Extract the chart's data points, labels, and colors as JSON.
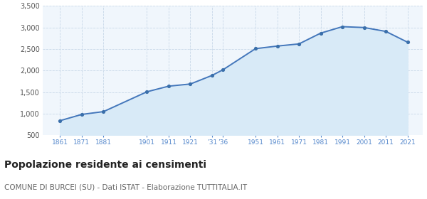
{
  "years": [
    1861,
    1871,
    1881,
    1901,
    1911,
    1921,
    1931,
    1936,
    1951,
    1961,
    1971,
    1981,
    1991,
    2001,
    2011,
    2021
  ],
  "population": [
    840,
    985,
    1050,
    1510,
    1640,
    1690,
    1890,
    2020,
    2510,
    2570,
    2620,
    2870,
    3020,
    3000,
    2910,
    2660
  ],
  "xtick_positions": [
    1861,
    1871,
    1881,
    1901,
    1911,
    1921,
    1931,
    1936,
    1951,
    1961,
    1971,
    1981,
    1991,
    2001,
    2011,
    2021
  ],
  "xtick_labels": [
    "1861",
    "1871",
    "1881",
    "1901",
    "1911",
    "1921",
    "’31",
    "’36",
    "1951",
    "1961",
    "1971",
    "1981",
    "1991",
    "2001",
    "2011",
    "2021"
  ],
  "line_color": "#4477bb",
  "fill_color": "#d8eaf7",
  "marker_color": "#3a6faa",
  "grid_color": "#c8d8e8",
  "bg_color": "#ffffff",
  "plot_bg_color": "#f0f6fc",
  "ylim": [
    500,
    3500
  ],
  "yticks": [
    500,
    1000,
    1500,
    2000,
    2500,
    3000,
    3500
  ],
  "xlim_min": 1853,
  "xlim_max": 2028,
  "title": "Popolazione residente ai censimenti",
  "subtitle": "COMUNE DI BURCEI (SU) - Dati ISTAT - Elaborazione TUTTITALIA.IT",
  "title_fontsize": 10,
  "subtitle_fontsize": 7.5,
  "xtick_color": "#5588cc",
  "ytick_color": "#555555"
}
